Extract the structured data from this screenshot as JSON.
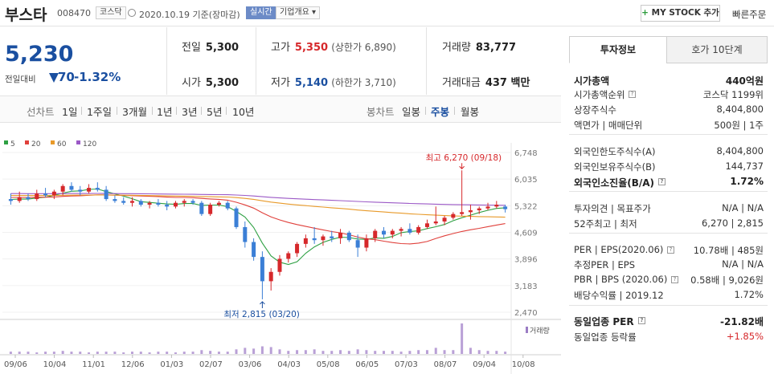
{
  "header": {
    "name": "부스타",
    "code": "008470",
    "market": "코스닥",
    "date": "2020.10.19 기준(장마감)",
    "realtime": "실시간",
    "company_info": "기업개요 ▾",
    "mystock_plus": "+",
    "mystock_label": "MY STOCK 추가",
    "quick_order": "빠른주문"
  },
  "price": {
    "current": "5,230",
    "change_label": "전일대비",
    "change": "70",
    "change_pct": "-1.32%"
  },
  "stats": {
    "prev_label": "전일",
    "prev": "5,300",
    "open_label": "시가",
    "open": "5,300",
    "high_label": "고가",
    "high": "5,350",
    "upper_limit": "(상한가 6,890)",
    "low_label": "저가",
    "low": "5,140",
    "lower_limit": "(하한가 3,710)",
    "volume_label": "거래량",
    "volume": "83,777",
    "amount_label": "거래대금",
    "amount": "437 백만"
  },
  "period_tabs": {
    "line_label": "선차트",
    "items": [
      "1일",
      "1주일",
      "3개월",
      "1년",
      "3년",
      "5년",
      "10년"
    ],
    "candle_label": "봉차트",
    "candle_items": [
      "일봉",
      "주봉",
      "월봉"
    ],
    "candle_selected": "주봉"
  },
  "chart_data": {
    "type": "candlestick",
    "legend": [
      {
        "name": "5",
        "color": "#2ea043"
      },
      {
        "name": "20",
        "color": "#e0403b"
      },
      {
        "name": "60",
        "color": "#e89a2a"
      },
      {
        "name": "120",
        "color": "#9b59c6"
      }
    ],
    "y_ticks": [
      "6,748",
      "6,035",
      "5,322",
      "4,609",
      "3,896",
      "3,183",
      "2,470"
    ],
    "y_range": [
      2470,
      6748
    ],
    "x_ticks": [
      "09/06",
      "10/04",
      "11/01",
      "12/06",
      "01/03",
      "02/07",
      "03/06",
      "04/03",
      "05/08",
      "06/05",
      "07/03",
      "08/07",
      "09/04",
      "10/08"
    ],
    "max_label": "최고 6,270 (09/18)",
    "min_label": "최저 2,815 (03/20)",
    "volume_label": "거래량",
    "candles": [
      [
        5500,
        5650,
        5350,
        5450
      ],
      [
        5450,
        5700,
        5400,
        5550
      ],
      [
        5550,
        5650,
        5450,
        5500
      ],
      [
        5500,
        5750,
        5450,
        5650
      ],
      [
        5650,
        5800,
        5550,
        5600
      ],
      [
        5600,
        5750,
        5500,
        5700
      ],
      [
        5700,
        5900,
        5600,
        5850
      ],
      [
        5850,
        5950,
        5700,
        5750
      ],
      [
        5750,
        5850,
        5600,
        5700
      ],
      [
        5700,
        5900,
        5650,
        5800
      ],
      [
        5800,
        5950,
        5700,
        5750
      ],
      [
        5750,
        5850,
        5450,
        5500
      ],
      [
        5500,
        5600,
        5400,
        5450
      ],
      [
        5450,
        5550,
        5350,
        5400
      ],
      [
        5400,
        5550,
        5300,
        5450
      ],
      [
        5450,
        5500,
        5300,
        5350
      ],
      [
        5350,
        5450,
        5250,
        5400
      ],
      [
        5400,
        5500,
        5300,
        5350
      ],
      [
        5350,
        5450,
        5200,
        5300
      ],
      [
        5300,
        5450,
        5250,
        5400
      ],
      [
        5400,
        5500,
        5300,
        5450
      ],
      [
        5450,
        5500,
        5350,
        5400
      ],
      [
        5400,
        5450,
        5050,
        5100
      ],
      [
        5100,
        5400,
        5050,
        5350
      ],
      [
        5350,
        5450,
        5300,
        5400
      ],
      [
        5400,
        5450,
        5200,
        5250
      ],
      [
        5250,
        5300,
        4700,
        4750
      ],
      [
        4750,
        4900,
        4200,
        4350
      ],
      [
        4350,
        4450,
        3850,
        3950
      ],
      [
        3950,
        4100,
        2815,
        3300
      ],
      [
        3300,
        3650,
        3050,
        3550
      ],
      [
        3550,
        4000,
        3450,
        3900
      ],
      [
        3900,
        4100,
        3800,
        4050
      ],
      [
        4050,
        4350,
        3950,
        4300
      ],
      [
        4300,
        4550,
        4200,
        4450
      ],
      [
        4450,
        4750,
        4300,
        4400
      ],
      [
        4400,
        4550,
        4250,
        4500
      ],
      [
        4500,
        4650,
        4350,
        4450
      ],
      [
        4450,
        4700,
        4300,
        4600
      ],
      [
        4600,
        4650,
        4350,
        4400
      ],
      [
        4400,
        4550,
        3950,
        4200
      ],
      [
        4200,
        4550,
        4100,
        4450
      ],
      [
        4450,
        4700,
        4350,
        4650
      ],
      [
        4650,
        4750,
        4450,
        4550
      ],
      [
        4550,
        4700,
        4450,
        4650
      ],
      [
        4650,
        4750,
        4500,
        4700
      ],
      [
        4700,
        4850,
        4550,
        4600
      ],
      [
        4600,
        4800,
        4550,
        4750
      ],
      [
        4750,
        4950,
        4700,
        4850
      ],
      [
        4850,
        5300,
        4800,
        4900
      ],
      [
        4900,
        5050,
        4800,
        5000
      ],
      [
        5000,
        5150,
        4950,
        5100
      ],
      [
        5100,
        6270,
        5050,
        5150
      ],
      [
        5150,
        5350,
        4950,
        5200
      ],
      [
        5200,
        5300,
        5100,
        5250
      ],
      [
        5250,
        5400,
        5200,
        5300
      ],
      [
        5300,
        5450,
        5250,
        5350
      ],
      [
        5300,
        5350,
        5140,
        5230
      ]
    ],
    "volume": [
      3,
      3,
      3,
      2,
      3,
      3,
      4,
      3,
      3,
      2,
      3,
      3,
      3,
      2,
      3,
      3,
      2,
      3,
      3,
      2,
      3,
      3,
      5,
      4,
      3,
      3,
      6,
      8,
      7,
      10,
      9,
      6,
      4,
      5,
      5,
      6,
      4,
      4,
      5,
      4,
      6,
      5,
      4,
      4,
      4,
      3,
      4,
      5,
      5,
      8,
      5,
      5,
      40,
      8,
      5,
      4,
      4,
      3
    ]
  },
  "info_panel": {
    "tab_active": "투자정보",
    "tab_other": "호가 10단계",
    "rows": [
      {
        "l": "시가총액",
        "r": "440억원"
      },
      {
        "l": "시가총액순위",
        "r": "코스닥 1199위"
      },
      {
        "l": "상장주식수",
        "r": "8,404,800"
      },
      {
        "l": "액면가 | 매매단위",
        "r": "500원 | 1주"
      },
      {
        "l": "외국인한도주식수(A)",
        "r": "8,404,800"
      },
      {
        "l": "외국인보유주식수(B)",
        "r": "144,737"
      },
      {
        "l": "외국인소진율(B/A)",
        "r": "1.72%"
      },
      {
        "l": "투자의견 | 목표주가",
        "r": "N/A | N/A"
      },
      {
        "l": "52주최고 | 최저",
        "r": "6,270 | 2,815"
      },
      {
        "l": "PER | EPS(2020.06)",
        "r": "10.78배 | 485원"
      },
      {
        "l": "추정PER | EPS",
        "r": "N/A | N/A"
      },
      {
        "l": "PBR | BPS (2020.06)",
        "r": "0.58배 | 9,026원"
      },
      {
        "l": "배당수익률 | 2019.12",
        "r": "1.72%"
      },
      {
        "l": "동일업종 PER",
        "r": "-21.82배"
      },
      {
        "l": "동일업종 등락률",
        "r": "+1.85%"
      }
    ]
  },
  "colors": {
    "up": "#d6282b",
    "down": "#3b7fd6",
    "accent": "#1a4fa0"
  }
}
